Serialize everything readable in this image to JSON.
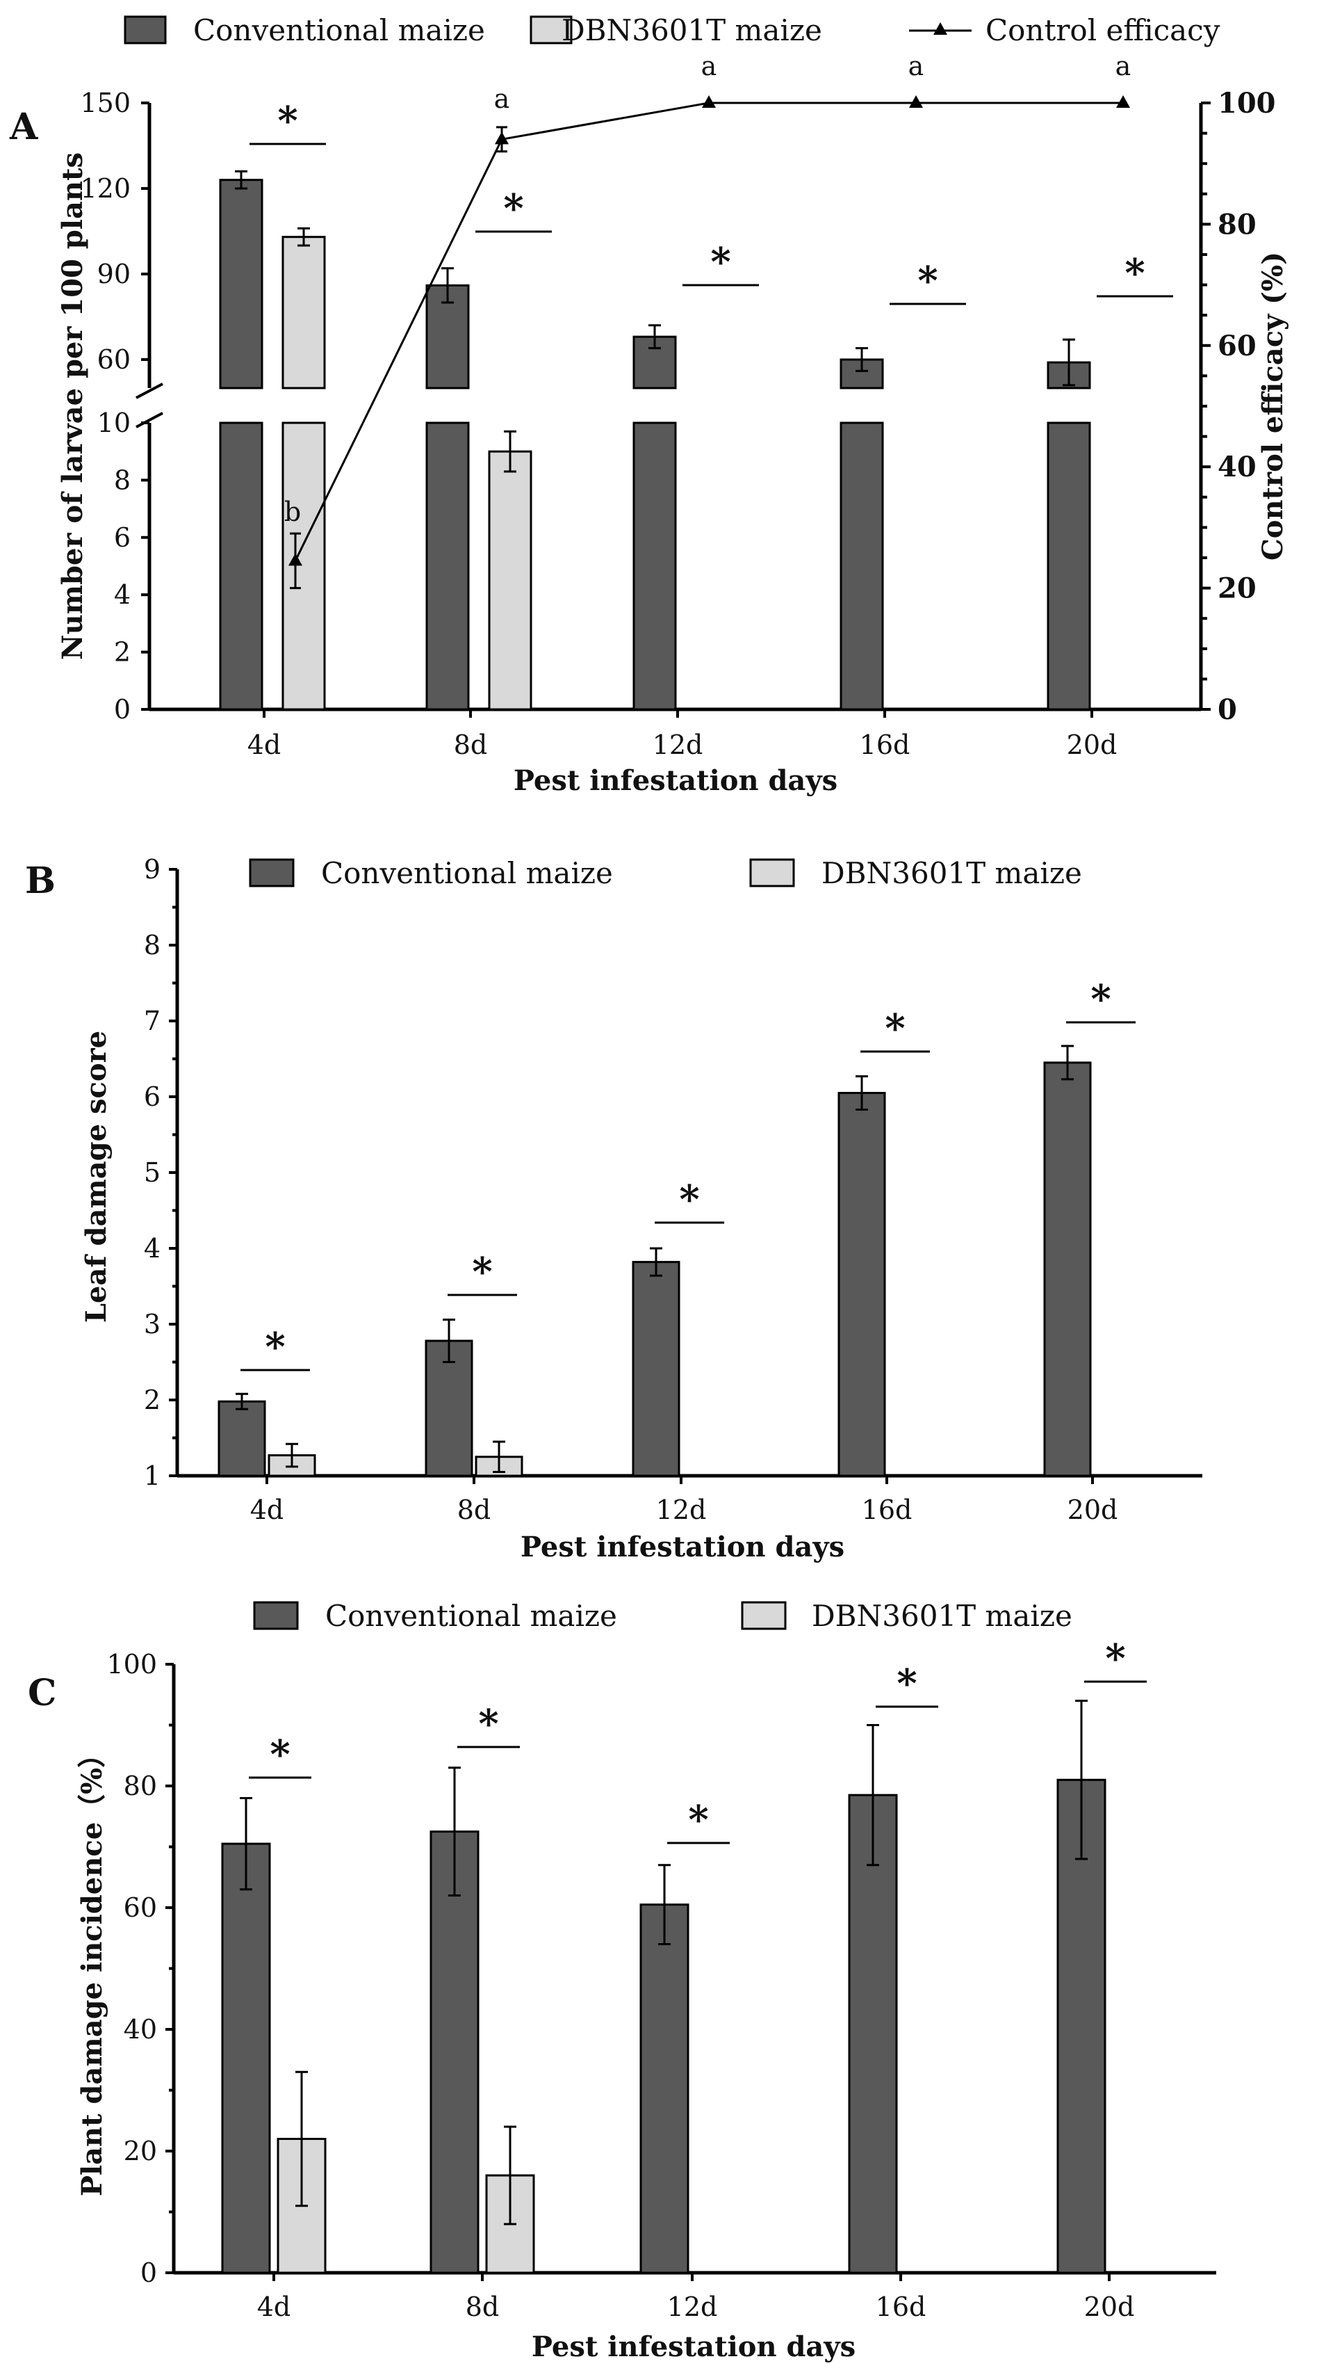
{
  "colors": {
    "conventional": "#595959",
    "dbn": "#d9d9d9",
    "axis": "#000000"
  },
  "chart_data": [
    {
      "panel": "A",
      "type": "bar",
      "xlabel": "Pest infestation days",
      "ylabel": "Number of larvae per 100 plants",
      "y2label": "Control efficacy (%)",
      "legend": [
        "Conventional maize",
        "DBN3601T maize",
        "Control efficacy"
      ],
      "categories": [
        "4d",
        "8d",
        "12d",
        "16d",
        "20d"
      ],
      "y_lower_ticks": [
        "0",
        "2",
        "4",
        "6",
        "8",
        "10"
      ],
      "y_upper_ticks": [
        "60",
        "90",
        "120",
        "150"
      ],
      "y2_ticks": [
        "0",
        "20",
        "40",
        "60",
        "80",
        "100"
      ],
      "y_break": {
        "lower_range": [
          0,
          10
        ],
        "upper_range": [
          50,
          150
        ]
      },
      "y2lim": [
        0,
        100
      ],
      "series": [
        {
          "name": "Conventional maize",
          "values": [
            123,
            86,
            68,
            60,
            59
          ],
          "errors": [
            3,
            6,
            4,
            4,
            8
          ]
        },
        {
          "name": "DBN3601T maize",
          "values": [
            103,
            9,
            0,
            0,
            0
          ],
          "errors": [
            3,
            0.7,
            0,
            0,
            0
          ]
        },
        {
          "name": "Control efficacy",
          "values": [
            24.5,
            94,
            100,
            100,
            100
          ],
          "errors": [
            4.5,
            2,
            0,
            0,
            0
          ],
          "letters": [
            "b",
            "a",
            "a",
            "a",
            "a"
          ]
        }
      ],
      "significance": [
        "*",
        "*",
        "*",
        "*",
        "*"
      ]
    },
    {
      "panel": "B",
      "type": "bar",
      "xlabel": "Pest infestation days",
      "ylabel": "Leaf damage score",
      "legend": [
        "Conventional maize",
        "DBN3601T maize"
      ],
      "categories": [
        "4d",
        "8d",
        "12d",
        "16d",
        "20d"
      ],
      "ylim": [
        1,
        9
      ],
      "y_ticks": [
        "1",
        "2",
        "3",
        "4",
        "5",
        "6",
        "7",
        "8",
        "9"
      ],
      "series": [
        {
          "name": "Conventional maize",
          "values": [
            1.98,
            2.78,
            3.82,
            6.05,
            6.45
          ],
          "errors": [
            0.1,
            0.28,
            0.18,
            0.22,
            0.22
          ]
        },
        {
          "name": "DBN3601T maize",
          "values": [
            1.27,
            1.25,
            1.0,
            1.0,
            1.0
          ],
          "errors": [
            0.15,
            0.2,
            0,
            0,
            0
          ]
        }
      ],
      "significance": [
        "*",
        "*",
        "*",
        "*",
        "*"
      ]
    },
    {
      "panel": "C",
      "type": "bar",
      "xlabel": "Pest infestation days",
      "ylabel": "Plant damage incidence（%）",
      "legend": [
        "Conventional maize",
        "DBN3601T maize"
      ],
      "categories": [
        "4d",
        "8d",
        "12d",
        "16d",
        "20d"
      ],
      "ylim": [
        0,
        100
      ],
      "y_ticks": [
        "0",
        "20",
        "40",
        "60",
        "80",
        "100"
      ],
      "series": [
        {
          "name": "Conventional maize",
          "values": [
            70.5,
            72.5,
            60.5,
            78.5,
            81
          ],
          "errors": [
            7.5,
            10.5,
            6.5,
            11.5,
            13
          ]
        },
        {
          "name": "DBN3601T maize",
          "values": [
            22,
            16,
            0,
            0,
            0
          ],
          "errors": [
            11,
            8,
            0,
            0,
            0
          ]
        }
      ],
      "significance": [
        "*",
        "*",
        "*",
        "*",
        "*"
      ]
    }
  ]
}
